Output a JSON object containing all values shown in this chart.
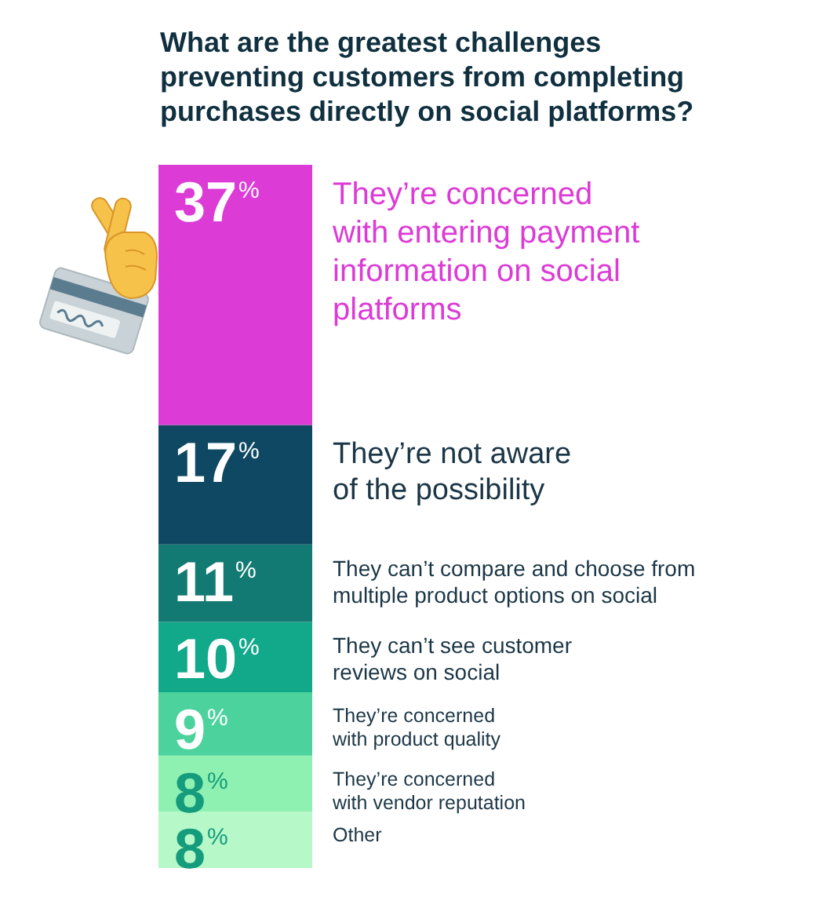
{
  "chart_data": {
    "type": "bar",
    "stacked": true,
    "title": "What are the greatest challenges\npreventing customers from completing\npurchases directly on social platforms?",
    "categories": [
      null
    ],
    "series": [
      {
        "name": "Other",
        "color": "#b6f8c8",
        "values": [
          8
        ],
        "value_labels": [
          "8$^{%}$"
        ]
      },
      {
        "name": "They’re concerned\nwith vendor reputation",
        "color": "#8ef1b1",
        "values": [
          8
        ],
        "value_labels": [
          "8$^{%}$"
        ]
      },
      {
        "name": "They’re concerned\nwith product quality",
        "color": "#4cd39d",
        "values": [
          9
        ],
        "value_labels": [
          "9$^{%}$"
        ]
      },
      {
        "name": "They can’t see customer\nreviews on social",
        "color": "#12a88a",
        "values": [
          10
        ],
        "value_labels": [
          "10$^{%}$"
        ]
      },
      {
        "name": "They can’t compare and choose from\nmultiple product options on social",
        "color": "#127a72",
        "values": [
          11
        ],
        "value_labels": [
          "11$^{%}$"
        ]
      },
      {
        "name": "They’re not aware\nof the possibility",
        "color": "#0f4862",
        "values": [
          17
        ],
        "value_labels": [
          "17$^{%}$"
        ]
      },
      {
        "name": "They’re concerned\nwith entering payment\ninformation on social\nplatforms",
        "color": "#dc3bd6",
        "values": [
          37
        ],
        "value_labels": [
          "37$^{%}$"
        ]
      }
    ]
  }
}
